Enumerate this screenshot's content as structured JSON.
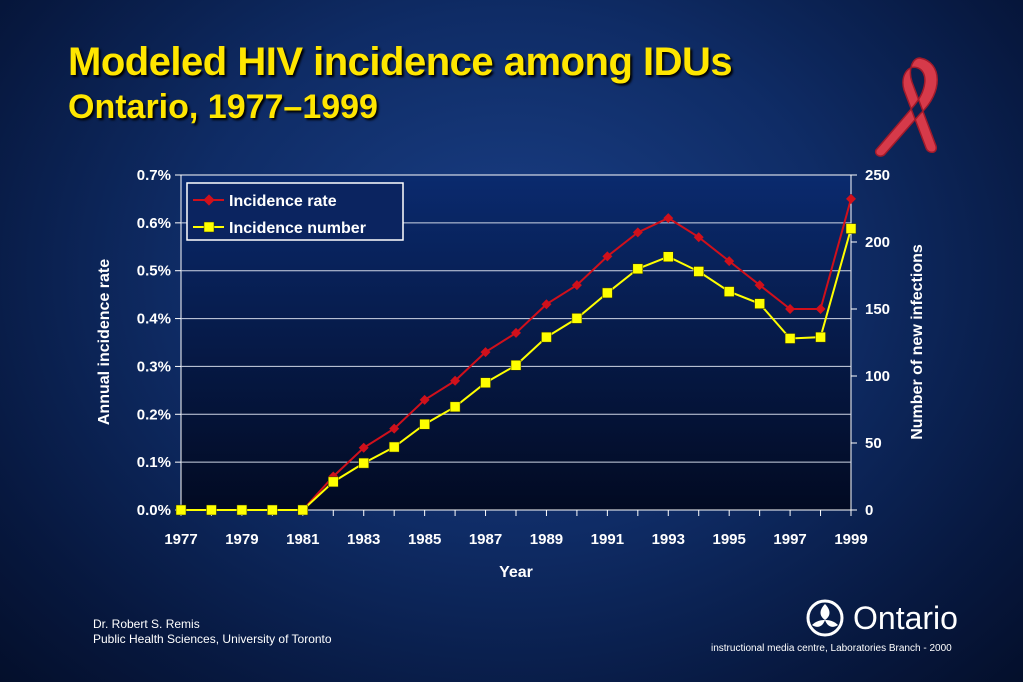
{
  "title_line1": "Modeled HIV incidence among IDUs",
  "title_line2": "Ontario, 1977–1999",
  "footer": {
    "author": "Dr. Robert S. Remis",
    "affiliation": "Public Health Sciences, University of Toronto",
    "brand": "Ontario",
    "credit": "instructional media centre, Laboratories Branch - 2000"
  },
  "colors": {
    "title": "#ffe600",
    "rate_line": "#d0101b",
    "number_line": "#ffff00",
    "plot_bg_top": "#0a2a6e",
    "plot_bg_bottom": "#020a22"
  },
  "chart_data": {
    "type": "line",
    "title": "",
    "xlabel": "Year",
    "ylabel": "Annual incidence rate",
    "y2label": "Number of new infections",
    "x": [
      1977,
      1978,
      1979,
      1980,
      1981,
      1982,
      1983,
      1984,
      1985,
      1986,
      1987,
      1988,
      1989,
      1990,
      1991,
      1992,
      1993,
      1994,
      1995,
      1996,
      1997,
      1998,
      1999
    ],
    "x_ticks": [
      "1977",
      "1979",
      "1981",
      "1983",
      "1985",
      "1987",
      "1989",
      "1991",
      "1993",
      "1995",
      "1997",
      "1999"
    ],
    "ylim": [
      0,
      0.7
    ],
    "y_ticks": [
      "0.0%",
      "0.1%",
      "0.2%",
      "0.3%",
      "0.4%",
      "0.5%",
      "0.6%",
      "0.7%"
    ],
    "y2lim": [
      0,
      250
    ],
    "y2_ticks": [
      "0",
      "50",
      "100",
      "150",
      "200",
      "250"
    ],
    "legend_position": "top-left",
    "grid": true,
    "series": [
      {
        "name": "Incidence rate",
        "axis": "left",
        "marker": "diamond",
        "values": [
          0,
          0,
          0,
          0,
          0,
          0.07,
          0.13,
          0.17,
          0.23,
          0.27,
          0.33,
          0.37,
          0.43,
          0.47,
          0.53,
          0.58,
          0.61,
          0.57,
          0.52,
          0.47,
          0.42,
          0.42,
          0.65
        ]
      },
      {
        "name": "Incidence number",
        "axis": "right",
        "marker": "square",
        "values": [
          0,
          0,
          0,
          0,
          0,
          21,
          35,
          47,
          64,
          77,
          95,
          108,
          129,
          143,
          162,
          180,
          189,
          178,
          163,
          154,
          128,
          129,
          210
        ]
      }
    ]
  }
}
